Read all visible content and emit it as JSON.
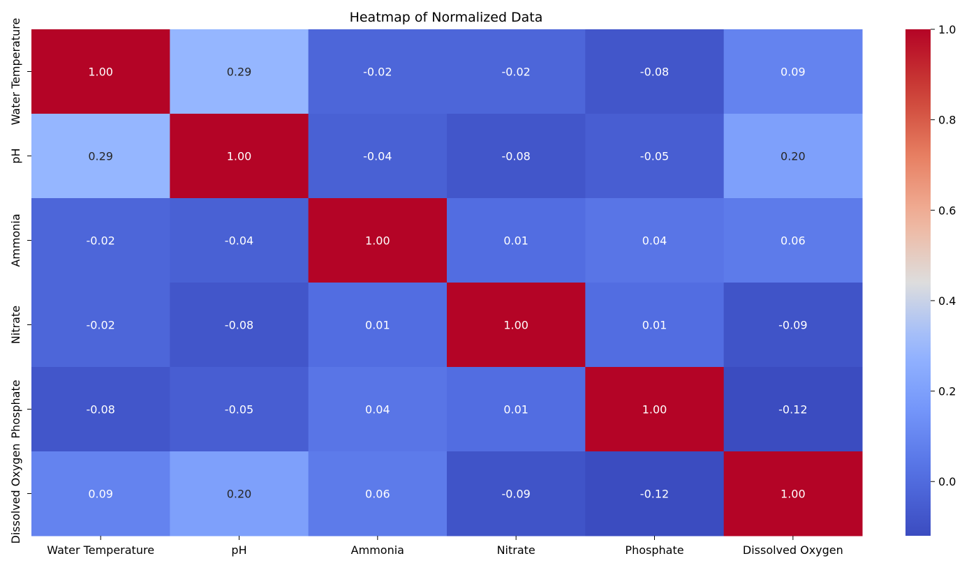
{
  "chart_data": {
    "type": "heatmap",
    "title": "Heatmap of Normalized Data",
    "x_categories": [
      "Water Temperature",
      "pH",
      "Ammonia",
      "Nitrate",
      "Phosphate",
      "Dissolved Oxygen"
    ],
    "y_categories": [
      "Water Temperature",
      "pH",
      "Ammonia",
      "Nitrate",
      "Phosphate",
      "Dissolved Oxygen"
    ],
    "values": [
      [
        1.0,
        0.29,
        -0.02,
        -0.02,
        -0.08,
        0.09
      ],
      [
        0.29,
        1.0,
        -0.04,
        -0.08,
        -0.05,
        0.2
      ],
      [
        -0.02,
        -0.04,
        1.0,
        0.01,
        0.04,
        0.06
      ],
      [
        -0.02,
        -0.08,
        0.01,
        1.0,
        0.01,
        -0.09
      ],
      [
        -0.08,
        -0.05,
        0.04,
        0.01,
        1.0,
        -0.12
      ],
      [
        0.09,
        0.2,
        0.06,
        -0.09,
        -0.12,
        1.0
      ]
    ],
    "value_format": "0.00",
    "colormap": "coolwarm",
    "vmin": -0.12,
    "vmax": 1.0,
    "colorbar_ticks": [
      0.0,
      0.2,
      0.4,
      0.6,
      0.8,
      1.0
    ],
    "colorbar_tick_labels": [
      "0.0",
      "0.2",
      "0.4",
      "0.6",
      "0.8",
      "1.0"
    ],
    "grid": false,
    "legend": "colorbar-right"
  }
}
